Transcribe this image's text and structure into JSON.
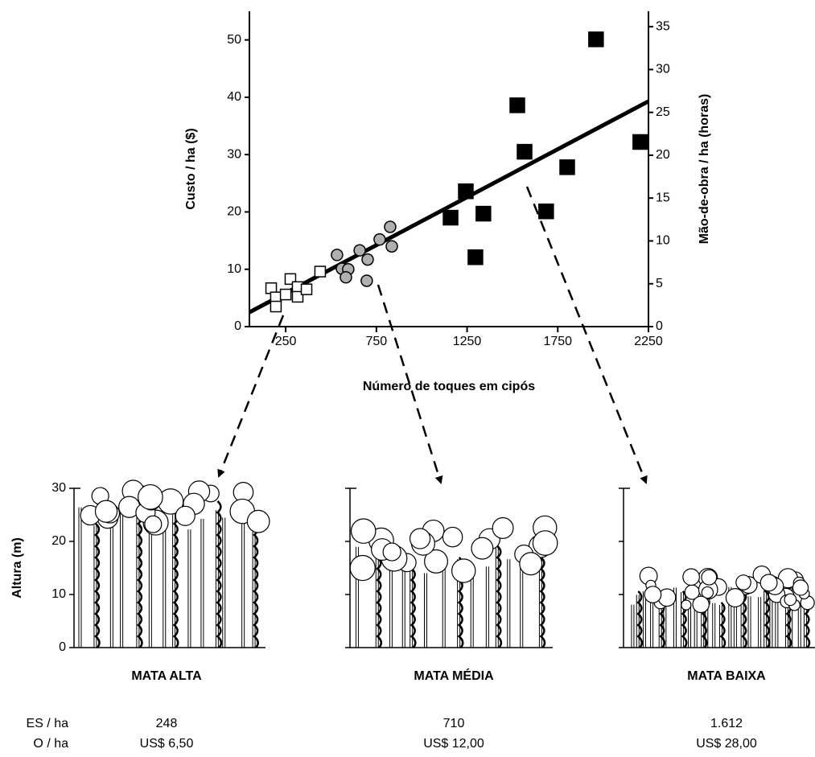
{
  "chart_data": {
    "type": "scatter",
    "x_label": "Número de toques em cipós",
    "y_label": "Custo / ha ($)",
    "y2_label": "Mão-de-obra / ha (horas)",
    "xlim": [
      50,
      2250
    ],
    "xticks": [
      250,
      750,
      1250,
      1750,
      2250
    ],
    "ylim": [
      0,
      55
    ],
    "yticks": [
      0,
      10,
      20,
      30,
      40,
      50
    ],
    "y2lim": [
      0,
      36.8
    ],
    "y2ticks": [
      0,
      5,
      10,
      15,
      20,
      25,
      30,
      35
    ],
    "series": [
      {
        "marker": "square",
        "color": "#ffffff",
        "x": [
          170,
          196,
          196,
          276,
          250,
          316,
          316,
          365,
          440
        ],
        "values": [
          6.7,
          5.1,
          3.5,
          8.3,
          5.6,
          6.9,
          5.2,
          6.5,
          9.6
        ]
      },
      {
        "marker": "circle",
        "color": "#b0b0b0",
        "x": [
          533,
          560,
          595,
          582,
          658,
          702,
          697,
          768,
          826,
          835
        ],
        "values": [
          12.5,
          10.1,
          10.0,
          8.6,
          13.3,
          11.7,
          8.0,
          15.2,
          17.4,
          14.0
        ]
      },
      {
        "marker": "square",
        "color": "#000000",
        "x": [
          1159,
          1243,
          1296,
          1340,
          1527,
          1567,
          1686,
          1802,
          1961,
          2205
        ],
        "values": [
          19.0,
          23.6,
          12.1,
          19.7,
          38.6,
          30.5,
          20.1,
          27.8,
          50.1,
          32.2
        ]
      }
    ],
    "trend_line": {
      "color": "#000000",
      "x": [
        50,
        2250
      ],
      "values": [
        2.5,
        39.3
      ]
    }
  },
  "forest_panels": {
    "y_label": "Altura (m)",
    "ylim": [
      0,
      30
    ],
    "yticks": [
      0,
      10,
      20,
      30
    ],
    "items": [
      {
        "label": "MATA ALTA",
        "toques": "248",
        "custo": "US$ 6,50"
      },
      {
        "label": "MATA MÉDIA",
        "toques": "710",
        "custo": "US$ 12,00"
      },
      {
        "label": "MATA BAIXA",
        "toques": "1.612",
        "custo": "US$ 28,00"
      }
    ]
  },
  "row_labels": [
    "ES / ha",
    "O / ha"
  ]
}
